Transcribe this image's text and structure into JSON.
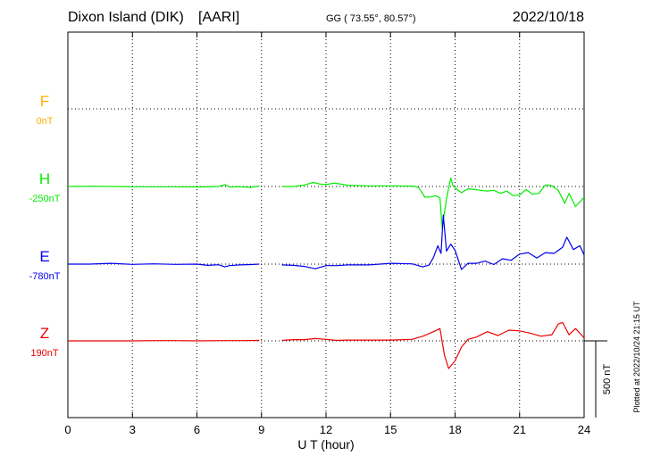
{
  "header": {
    "station": "Dixon Island (DIK)",
    "institute": "[AARI]",
    "coords": "GG ( 73.55°,  80.57°)",
    "date": "2022/10/18"
  },
  "footer": {
    "plotted": "Plotted at 2022/10/24 21:15 UT",
    "scale_label": "500 nT"
  },
  "chart_data": {
    "type": "line",
    "xlabel": "U T (hour)",
    "xlim": [
      0,
      24
    ],
    "xticks": [
      "0",
      "3",
      "6",
      "9",
      "12",
      "15",
      "18",
      "21",
      "24"
    ],
    "scale_nT": 500,
    "grid": true,
    "gap_hours": [
      8.95,
      9.95
    ],
    "components": [
      {
        "name": "F",
        "baseline_label": "0nT",
        "color": "#ffb000",
        "x": [],
        "y": []
      },
      {
        "name": "H",
        "baseline_label": "-250nT",
        "color": "#00ee00",
        "x": [
          0,
          1,
          2,
          3,
          4,
          5,
          6,
          7,
          7.3,
          7.5,
          8,
          8.5,
          8.9,
          9.95,
          10.5,
          11,
          11.4,
          11.7,
          12,
          12.4,
          12.7,
          13,
          14,
          15,
          16,
          16.3,
          16.6,
          16.9,
          17.1,
          17.3,
          17.4,
          17.6,
          17.8,
          17.9,
          18.1,
          18.3,
          18.6,
          18.9,
          19.2,
          19.5,
          19.8,
          20.1,
          20.4,
          20.7,
          21,
          21.3,
          21.6,
          21.9,
          22.2,
          22.5,
          22.8,
          23.1,
          23.3,
          23.6,
          24
        ],
        "y": [
          0,
          2,
          0,
          -2,
          -2,
          -2,
          -3,
          0,
          12,
          -3,
          -2,
          -6,
          3,
          0,
          0,
          10,
          26,
          16,
          12,
          22,
          15,
          8,
          4,
          4,
          3,
          -5,
          -70,
          -68,
          -60,
          -75,
          -270,
          -80,
          55,
          5,
          -20,
          -40,
          -15,
          -20,
          -25,
          -30,
          -25,
          -45,
          -30,
          -60,
          -55,
          -20,
          -50,
          -45,
          10,
          5,
          -25,
          -110,
          -45,
          -130,
          -70
        ]
      },
      {
        "name": "E",
        "baseline_label": "-780nT",
        "color": "#0000ee",
        "x": [
          0,
          1,
          2,
          3,
          4,
          5,
          6,
          6.5,
          7,
          7.3,
          7.5,
          8,
          8.5,
          8.9,
          9.95,
          10.5,
          11,
          11.5,
          12,
          12.5,
          13,
          14,
          15,
          16,
          16.5,
          16.8,
          17,
          17.2,
          17.35,
          17.45,
          17.6,
          17.8,
          18,
          18.3,
          18.6,
          19,
          19.4,
          19.8,
          20.2,
          20.6,
          21,
          21.4,
          21.8,
          22.2,
          22.6,
          23,
          23.2,
          23.5,
          23.8,
          24
        ],
        "y": [
          0,
          0,
          5,
          -2,
          2,
          -2,
          0,
          -8,
          -4,
          -18,
          -10,
          -5,
          -3,
          0,
          -5,
          -8,
          -15,
          -30,
          -10,
          -10,
          -5,
          -5,
          5,
          2,
          -18,
          -5,
          45,
          120,
          70,
          320,
          85,
          130,
          90,
          -35,
          5,
          5,
          20,
          -3,
          35,
          25,
          65,
          75,
          40,
          75,
          70,
          110,
          175,
          95,
          120,
          60
        ]
      },
      {
        "name": "Z",
        "baseline_label": "190nT",
        "color": "#ee0000",
        "x": [
          0,
          1,
          2,
          3,
          4,
          5,
          6,
          7,
          8,
          8.9,
          9.95,
          10.5,
          11,
          11.5,
          12,
          12.5,
          13,
          14,
          15,
          16,
          16.5,
          17,
          17.3,
          17.5,
          17.7,
          18,
          18.3,
          18.6,
          19,
          19.5,
          20,
          20.5,
          21,
          21.5,
          22,
          22.5,
          22.8,
          23,
          23.3,
          23.6,
          24
        ],
        "y": [
          0,
          0,
          0,
          0,
          2,
          2,
          0,
          2,
          2,
          3,
          3,
          8,
          8,
          15,
          10,
          3,
          5,
          5,
          5,
          10,
          30,
          60,
          80,
          -90,
          -180,
          -130,
          -40,
          10,
          25,
          60,
          35,
          70,
          65,
          50,
          30,
          40,
          110,
          120,
          40,
          80,
          20
        ]
      }
    ]
  }
}
